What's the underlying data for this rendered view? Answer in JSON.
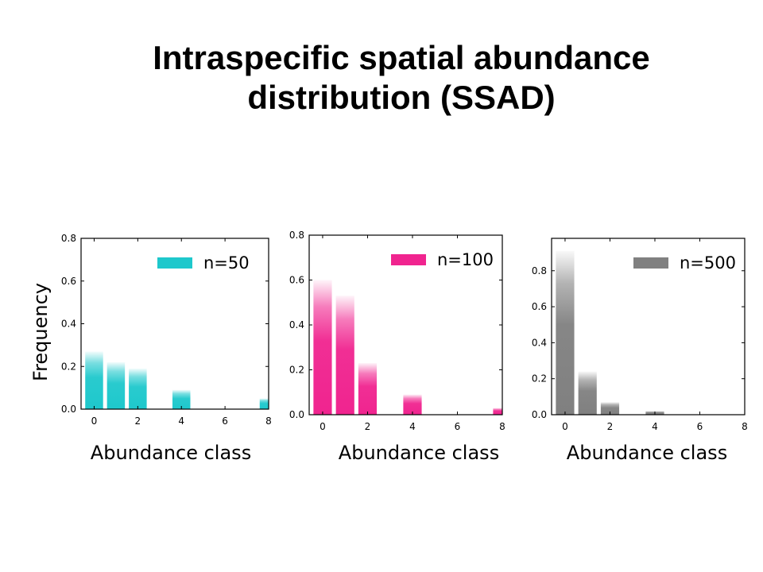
{
  "title": {
    "line1": "Intraspecific spatial abundance",
    "line2": "distribution (SSAD)"
  },
  "y_label": "Frequency",
  "chart_data": [
    {
      "type": "bar",
      "x": [
        0,
        1,
        2,
        4,
        8
      ],
      "values": [
        0.27,
        0.22,
        0.19,
        0.09,
        0.05
      ],
      "legend": "n=50",
      "color": "#1ec8cc",
      "xlabel": "Abundance class",
      "ylabel": "Frequency",
      "xlim": [
        -0.6,
        8
      ],
      "ylim": [
        0.0,
        0.8
      ],
      "xticks": [
        0,
        2,
        4,
        6,
        8
      ],
      "yticks": [
        0.0,
        0.2,
        0.4,
        0.6,
        0.8
      ],
      "ytick_labels": [
        "0.0",
        "0.2",
        "0.4",
        "0.6",
        "0.8"
      ],
      "legend_position": "top-right"
    },
    {
      "type": "bar",
      "x": [
        0,
        1,
        2,
        4,
        8
      ],
      "values": [
        0.6,
        0.53,
        0.23,
        0.09,
        0.03
      ],
      "legend": "n=100",
      "color": "#f0248f",
      "xlabel": "Abundance class",
      "ylabel": "",
      "xlim": [
        -0.6,
        8
      ],
      "ylim": [
        0.0,
        0.8
      ],
      "xticks": [
        0,
        2,
        4,
        6,
        8
      ],
      "yticks": [
        0.0,
        0.2,
        0.4,
        0.6,
        0.8
      ],
      "ytick_labels": [
        "0.0",
        "0.2",
        "0.4",
        "0.6",
        "0.8"
      ],
      "legend_position": "top-right"
    },
    {
      "type": "bar",
      "x": [
        0,
        1,
        2,
        4
      ],
      "values": [
        0.91,
        0.24,
        0.07,
        0.02
      ],
      "legend": "n=500",
      "color": "#808080",
      "xlabel": "Abundance class",
      "ylabel": "",
      "xlim": [
        -0.6,
        8
      ],
      "ylim": [
        0.0,
        0.98
      ],
      "xticks": [
        0,
        2,
        4,
        6,
        8
      ],
      "yticks": [
        0.0,
        0.2,
        0.4,
        0.6,
        0.8
      ],
      "ytick_labels": [
        "0.0",
        "0.2",
        "0.4",
        "0.6",
        "0.8"
      ],
      "legend_position": "top-right"
    }
  ]
}
